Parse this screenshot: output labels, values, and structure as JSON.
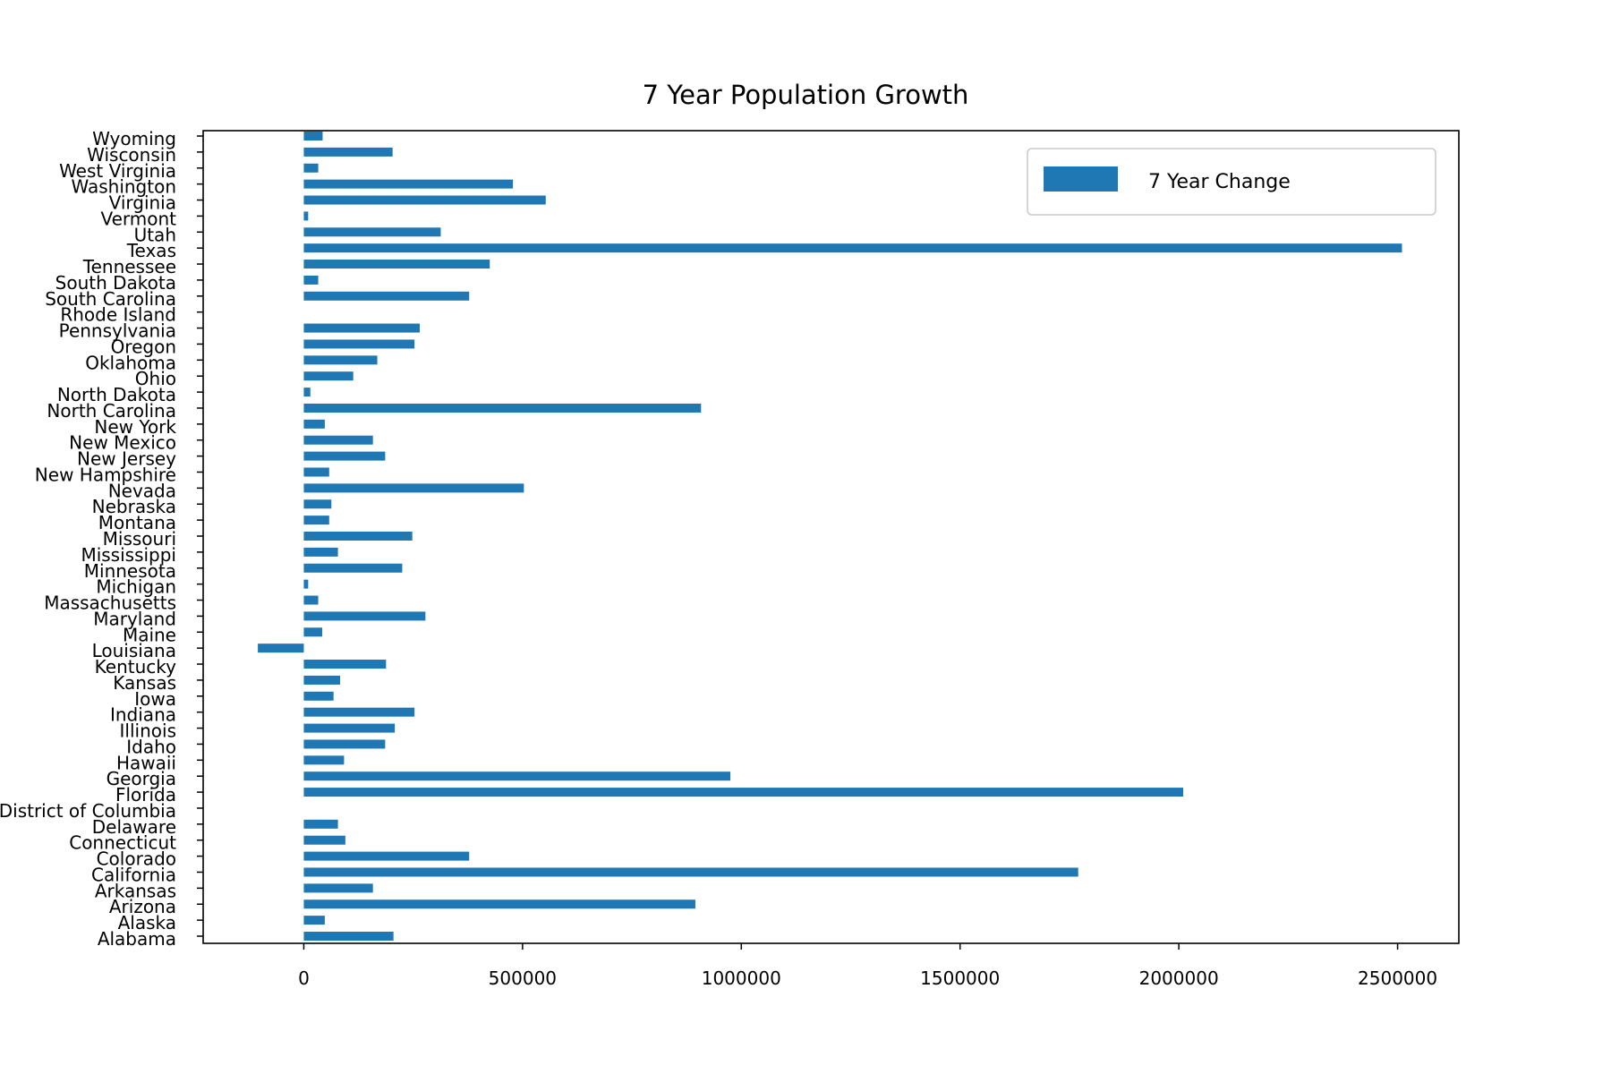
{
  "chart_data": {
    "type": "bar",
    "orientation": "horizontal",
    "title": "7 Year Population Growth",
    "xlabel": "",
    "ylabel": "",
    "xlim": [
      -230000,
      2640000
    ],
    "xticks": [
      0,
      500000,
      1000000,
      1500000,
      2000000,
      2500000
    ],
    "xtick_labels": [
      "0",
      "500000",
      "1000000",
      "1500000",
      "2000000",
      "2500000"
    ],
    "grid": false,
    "legend_position": "top-right",
    "bar_color": "#1f77b4",
    "series": [
      {
        "name": "7 Year Change"
      }
    ],
    "categories": [
      "Alabama",
      "Alaska",
      "Arizona",
      "Arkansas",
      "California",
      "Colorado",
      "Connecticut",
      "Delaware",
      "District of Columbia",
      "Florida",
      "Georgia",
      "Hawaii",
      "Idaho",
      "Illinois",
      "Indiana",
      "Iowa",
      "Kansas",
      "Kentucky",
      "Louisiana",
      "Maine",
      "Maryland",
      "Massachusetts",
      "Michigan",
      "Minnesota",
      "Mississippi",
      "Missouri",
      "Montana",
      "Nebraska",
      "Nevada",
      "New Hampshire",
      "New Jersey",
      "New Mexico",
      "New York",
      "North Carolina",
      "North Dakota",
      "Ohio",
      "Oklahoma",
      "Oregon",
      "Pennsylvania",
      "Rhode Island",
      "South Carolina",
      "South Dakota",
      "Tennessee",
      "Texas",
      "Utah",
      "Vermont",
      "Virginia",
      "Washington",
      "West Virginia",
      "Wisconsin",
      "Wyoming"
    ],
    "values": [
      205000,
      48000,
      895000,
      158000,
      1770000,
      378000,
      95000,
      78000,
      0,
      2010000,
      975000,
      92000,
      186000,
      208000,
      253000,
      68000,
      83000,
      188000,
      -105000,
      42000,
      278000,
      33000,
      10000,
      225000,
      78000,
      248000,
      58000,
      63000,
      503000,
      58000,
      186000,
      158000,
      48000,
      908000,
      15000,
      113000,
      168000,
      253000,
      265000,
      0,
      378000,
      33000,
      425000,
      2510000,
      313000,
      10000,
      553000,
      478000,
      33000,
      203000,
      43000
    ]
  }
}
